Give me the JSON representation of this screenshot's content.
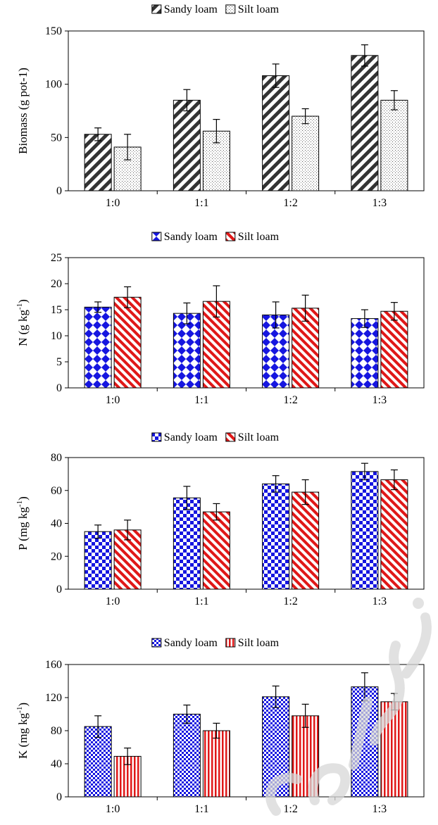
{
  "chart_data": [
    {
      "type": "bar",
      "ylabel": "Biomass (g pot-1)",
      "ylabel_superscript": "",
      "categories": [
        "1:0",
        "1:1",
        "1:2",
        "1:3"
      ],
      "ylim": [
        0,
        150
      ],
      "yticks": [
        "0",
        "50",
        "100",
        "150"
      ],
      "legend_position": "top-center",
      "series": [
        {
          "name": "Sandy loam",
          "pattern": "diagonal-stripes-dark",
          "values": [
            53,
            85,
            108,
            127
          ],
          "errors": [
            6,
            10,
            11,
            10
          ]
        },
        {
          "name": "Silt loam",
          "pattern": "dots-light",
          "values": [
            41,
            56,
            70,
            85
          ],
          "errors": [
            12,
            11,
            7,
            9
          ]
        }
      ]
    },
    {
      "type": "bar",
      "ylabel": "N (g kg",
      "ylabel_superscript": "-1",
      "categories": [
        "1:0",
        "1:1",
        "1:2",
        "1:3"
      ],
      "ylim": [
        0,
        25
      ],
      "yticks": [
        "0",
        "5",
        "10",
        "15",
        "20",
        "25"
      ],
      "legend_position": "top-center",
      "series": [
        {
          "name": "Sandy loam",
          "pattern": "blue-diamonds",
          "values": [
            15.5,
            14.3,
            14.0,
            13.3
          ],
          "errors": [
            1.0,
            2.0,
            2.5,
            1.7
          ]
        },
        {
          "name": "Silt loam",
          "pattern": "red-diagonal-stripes",
          "values": [
            17.4,
            16.6,
            15.3,
            14.7
          ],
          "errors": [
            2.0,
            3.0,
            2.5,
            1.7
          ]
        }
      ]
    },
    {
      "type": "bar",
      "ylabel": "P (mg kg",
      "ylabel_superscript": "-1",
      "categories": [
        "1:0",
        "1:1",
        "1:2",
        "1:3"
      ],
      "ylim": [
        0,
        80
      ],
      "yticks": [
        "0",
        "20",
        "40",
        "60",
        "80"
      ],
      "legend_position": "top-center",
      "series": [
        {
          "name": "Sandy loam",
          "pattern": "blue-checker",
          "values": [
            35,
            55.5,
            64,
            71.5
          ],
          "errors": [
            4,
            7,
            5,
            5
          ]
        },
        {
          "name": "Silt loam",
          "pattern": "red-diagonal-stripes",
          "values": [
            36,
            47,
            59,
            66.5
          ],
          "errors": [
            6,
            5,
            7.5,
            6
          ]
        }
      ]
    },
    {
      "type": "bar",
      "ylabel": "K (mg kg",
      "ylabel_superscript": "-1",
      "categories": [
        "1:0",
        "1:1",
        "1:2",
        "1:3"
      ],
      "ylim": [
        0,
        160
      ],
      "yticks": [
        "0",
        "40",
        "80",
        "120",
        "160"
      ],
      "legend_position": "top-center",
      "series": [
        {
          "name": "Sandy loam",
          "pattern": "blue-small-checker",
          "values": [
            85,
            100,
            121,
            133
          ],
          "errors": [
            13,
            11,
            13,
            17
          ]
        },
        {
          "name": "Silt loam",
          "pattern": "red-vertical-stripes",
          "values": [
            49,
            80,
            98,
            115
          ],
          "errors": [
            10,
            9,
            14,
            10
          ]
        }
      ]
    }
  ],
  "colors": {
    "sandy_dark": "#333333",
    "blue": "#1616e0",
    "red": "#e01818",
    "axis": "#000000"
  }
}
